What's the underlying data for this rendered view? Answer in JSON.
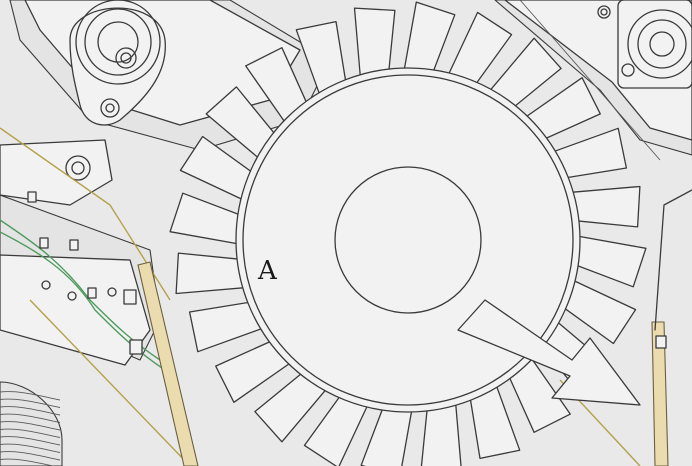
{
  "labels": {
    "rotor": "A"
  },
  "colors": {
    "background": "#e9e9e9",
    "line": "#3a3a3a",
    "wire": "#4f9a5e",
    "guide": "#b3a24a",
    "bracket": "#eadcae"
  }
}
